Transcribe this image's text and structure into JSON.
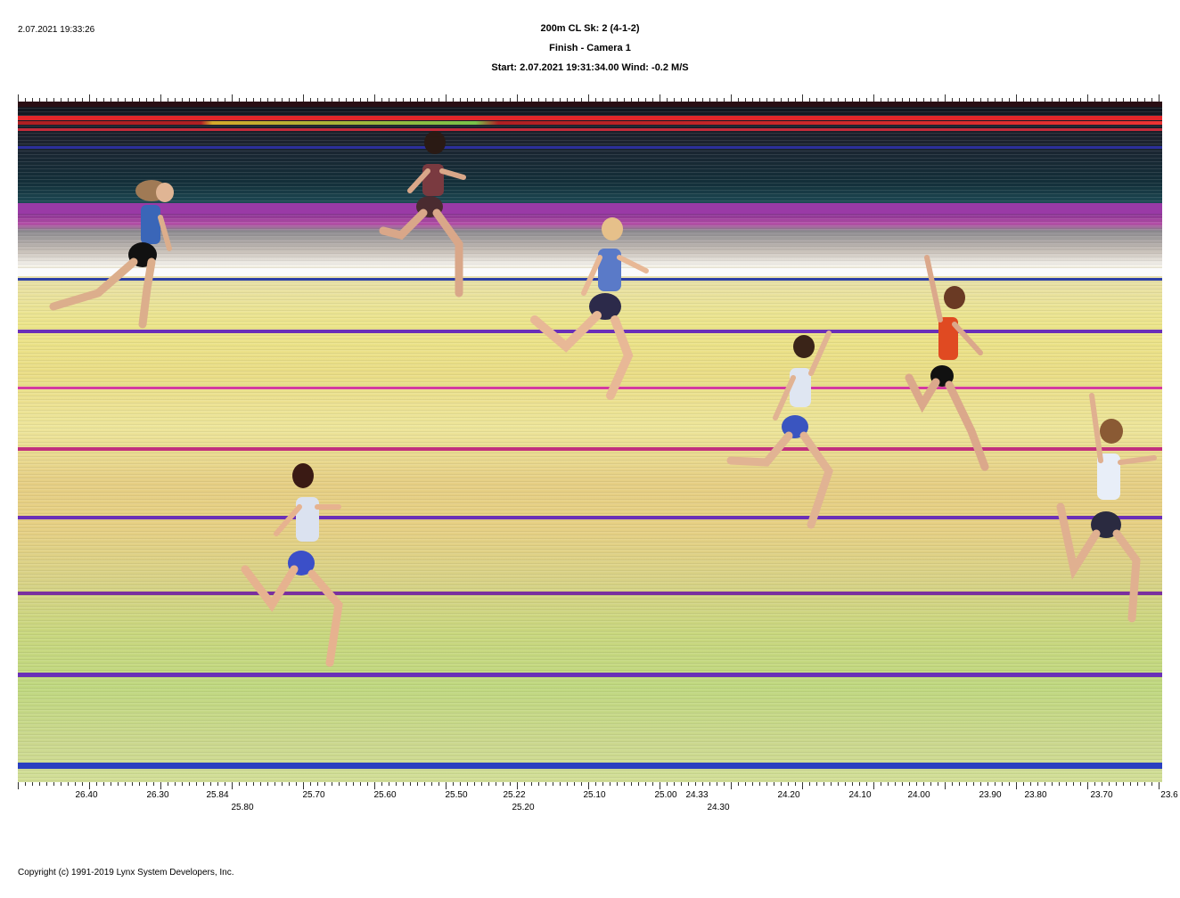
{
  "header": {
    "timestamp": "2.07.2021 19:33:26",
    "title": "200m CL   Sk: 2 (4-1-2)",
    "subtitle": "Finish - Camera 1",
    "start_info": "Start: 2.07.2021 19:31:34.00     Wind: -0.2 M/S"
  },
  "time_scale": {
    "upper_labels": [
      "26.40",
      "26.30",
      "25.84",
      "25.70",
      "25.60",
      "25.50",
      "25.22",
      "25.10",
      "25.00",
      "24.33",
      "24.20",
      "24.10",
      "24.00",
      "23.90",
      "23.80",
      "23.70",
      "23.6"
    ],
    "lower_labels": [
      "25.80",
      "25.20",
      "24.30"
    ]
  },
  "footer": {
    "copyright": "Copyright (c) 1991-2019 Lynx System Developers, Inc."
  },
  "colors": {
    "lane_line_purple": "#6a2fb8",
    "lane_line_magenta": "#d43aa0",
    "lane_line_blue": "#2a3fc0",
    "track_yellow": "#ece58a"
  }
}
